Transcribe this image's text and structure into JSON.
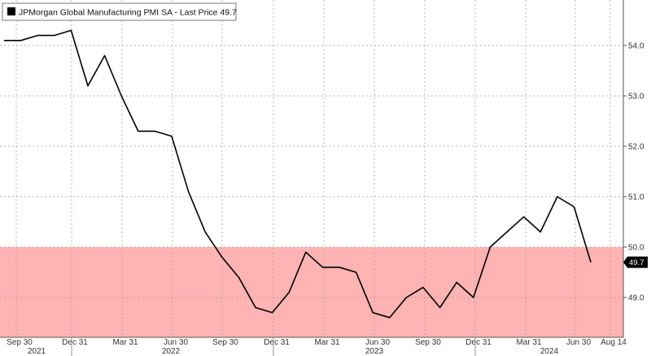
{
  "chart_data": {
    "type": "line",
    "legend": "JPMorgan Global Manufacturing PMI SA - Last Price",
    "last_price": "49.7",
    "series": [
      {
        "name": "JPMorgan Global Manufacturing PMI SA",
        "x": [
          "2021-08",
          "2021-09",
          "2021-10",
          "2021-11",
          "2021-12",
          "2022-01",
          "2022-02",
          "2022-03",
          "2022-04",
          "2022-05",
          "2022-06",
          "2022-07",
          "2022-08",
          "2022-09",
          "2022-10",
          "2022-11",
          "2022-12",
          "2023-01",
          "2023-02",
          "2023-03",
          "2023-04",
          "2023-05",
          "2023-06",
          "2023-07",
          "2023-08",
          "2023-09",
          "2023-10",
          "2023-11",
          "2023-12",
          "2024-01",
          "2024-02",
          "2024-03",
          "2024-04",
          "2024-05",
          "2024-06",
          "2024-07"
        ],
        "values": [
          54.1,
          54.1,
          54.2,
          54.2,
          54.3,
          53.2,
          53.8,
          53.0,
          52.3,
          52.3,
          52.2,
          51.1,
          50.3,
          49.8,
          49.4,
          48.8,
          48.7,
          49.1,
          49.9,
          49.6,
          49.6,
          49.5,
          48.7,
          48.6,
          49.0,
          49.2,
          48.8,
          49.3,
          49.0,
          50.0,
          50.3,
          50.6,
          50.3,
          51.0,
          50.8,
          49.7
        ],
        "color": "#000000"
      }
    ],
    "ylim": [
      48.4,
      55.0
    ],
    "yticks": [
      "49.0",
      "50.0",
      "51.0",
      "52.0",
      "53.0",
      "54.0"
    ],
    "xticks": [
      "Sep 30",
      "Dec 31",
      "Mar 31",
      "Jun 30",
      "Sep 30",
      "Dec 31",
      "Mar 31",
      "Jun 30",
      "Sep 30",
      "Dec 31",
      "Mar 31",
      "Jun 30",
      "Aug 14"
    ],
    "year_labels": [
      "2021",
      "2022",
      "2023",
      "2024"
    ],
    "shaded_band": {
      "from": 48.4,
      "to": 50.0,
      "color": "#ffb3b3"
    },
    "grid": true,
    "legend_position": "top-left"
  }
}
